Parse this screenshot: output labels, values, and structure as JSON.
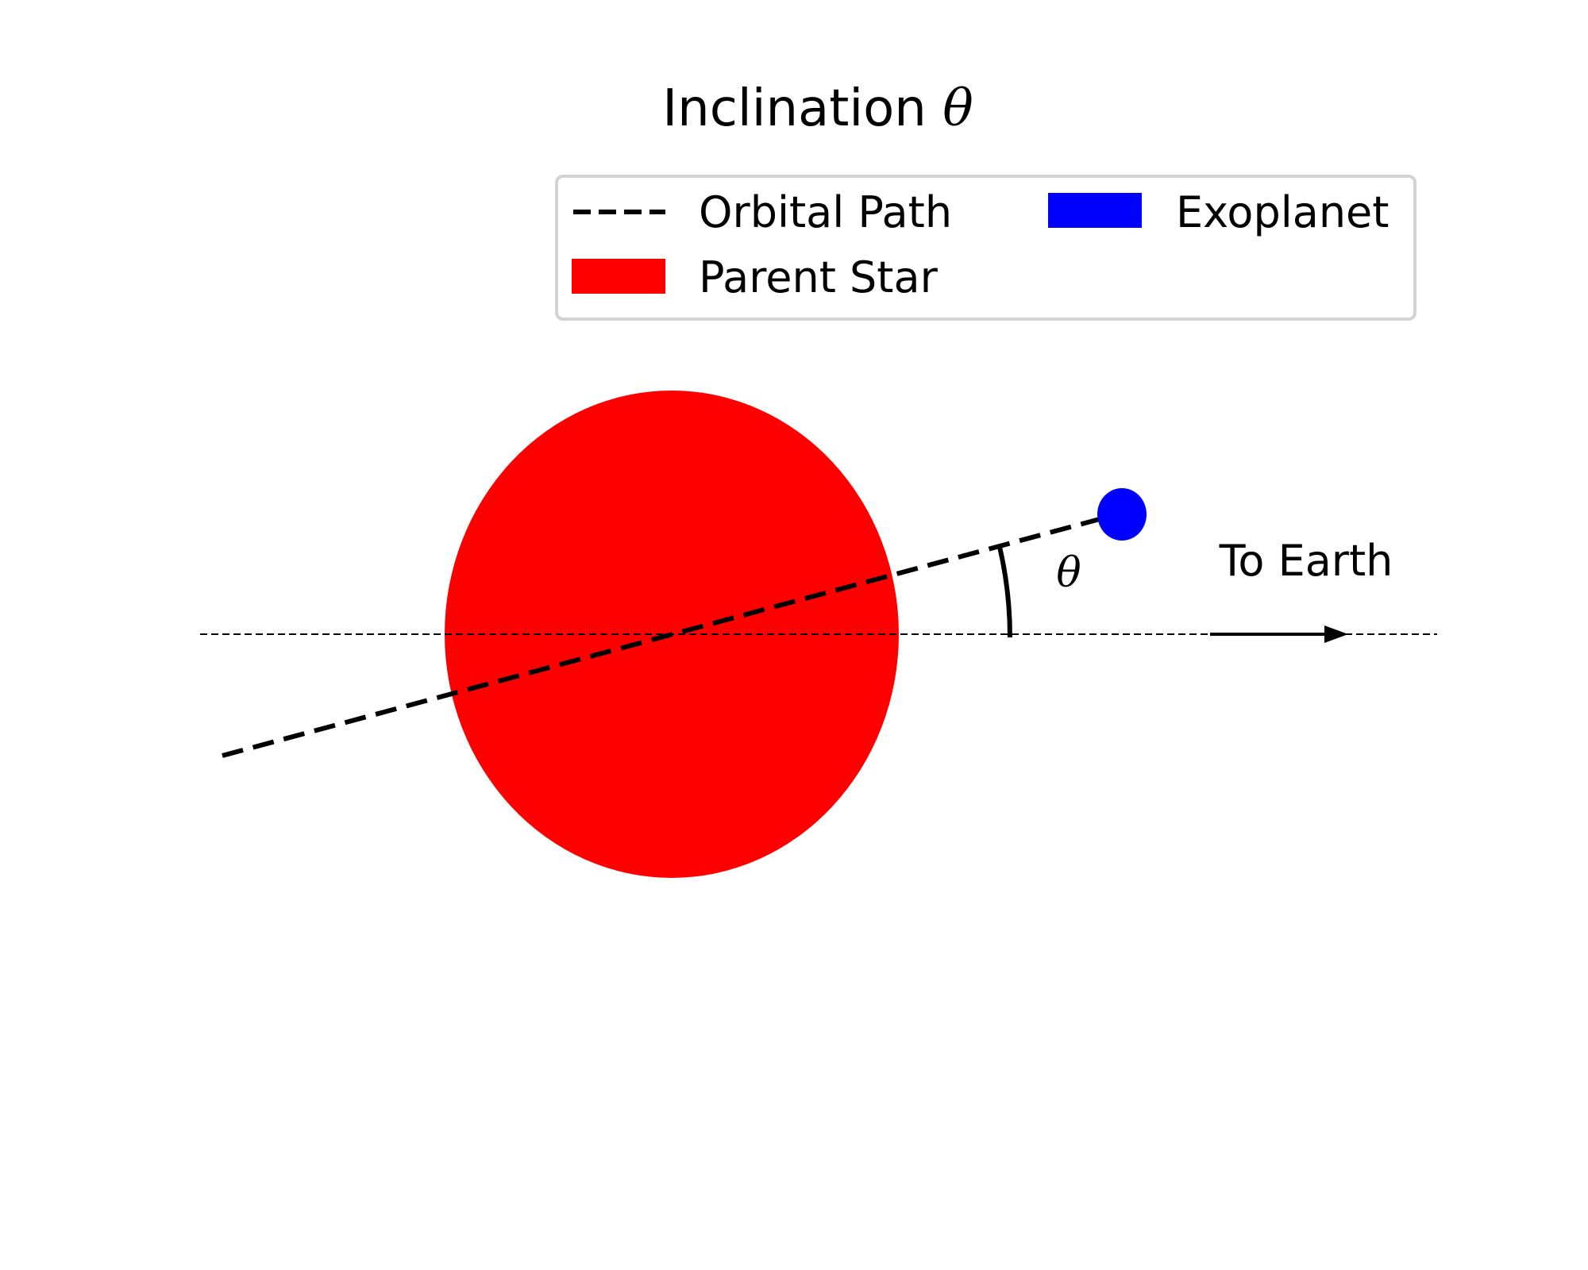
{
  "title": {
    "text": "Inclination ",
    "symbol": "θ"
  },
  "legend": {
    "items": [
      {
        "label": "Orbital Path",
        "kind": "dashed-line",
        "color": "#000000"
      },
      {
        "label": "Exoplanet",
        "kind": "patch",
        "color": "#0000ff"
      },
      {
        "label": "Parent Star",
        "kind": "patch",
        "color": "#ff0000"
      }
    ]
  },
  "annotations": {
    "angle_symbol": "θ",
    "earth_label": "To Earth"
  },
  "colors": {
    "star": "#ff0000",
    "planet": "#0000ff",
    "line": "#000000",
    "legend_border": "#d3d3d3"
  },
  "diagram": {
    "inclination_deg": 15
  }
}
